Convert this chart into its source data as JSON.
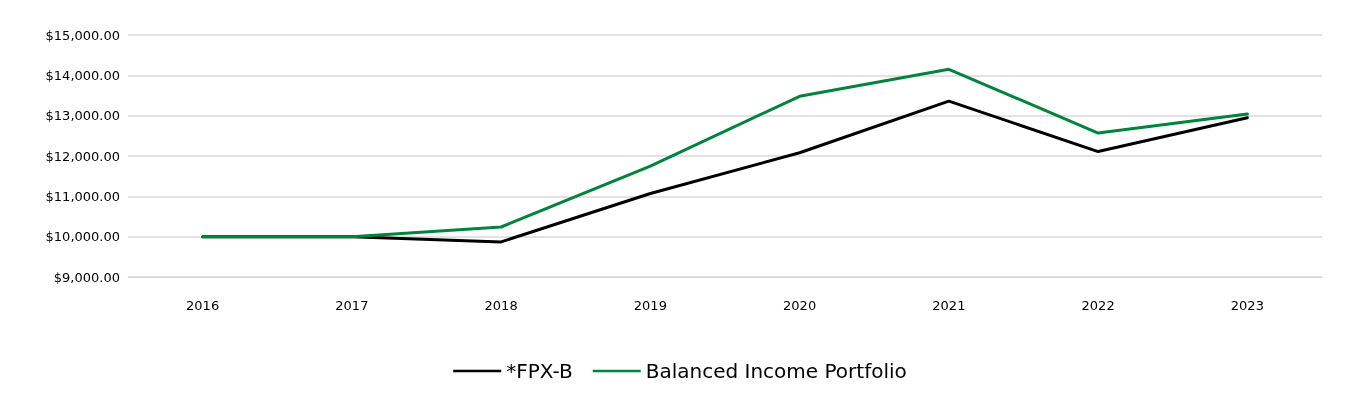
{
  "chart_data": {
    "type": "line",
    "categories": [
      "2016",
      "2017",
      "2018",
      "2019",
      "2020",
      "2021",
      "2022",
      "2023"
    ],
    "series": [
      {
        "name": "*FPX-B",
        "color": "#000000",
        "values": [
          10000,
          10000,
          9870,
          11070,
          12080,
          13360,
          12110,
          12950
        ]
      },
      {
        "name": "Balanced Income Portfolio",
        "color": "#00843d",
        "values": [
          10000,
          10000,
          10240,
          11750,
          13480,
          14150,
          12570,
          13040
        ]
      }
    ],
    "ylim": [
      9000,
      15000
    ],
    "yticks": [
      {
        "value": 9000,
        "label": "$9,000.00"
      },
      {
        "value": 10000,
        "label": "$10,000.00"
      },
      {
        "value": 11000,
        "label": "$11,000.00"
      },
      {
        "value": 12000,
        "label": "$12,000.00"
      },
      {
        "value": 13000,
        "label": "$13,000.00"
      },
      {
        "value": 14000,
        "label": "$14,000.00"
      },
      {
        "value": 15000,
        "label": "$15,000.00"
      }
    ],
    "grid": "y",
    "legend": "bottom",
    "marker": "none",
    "line_style": "solid"
  }
}
